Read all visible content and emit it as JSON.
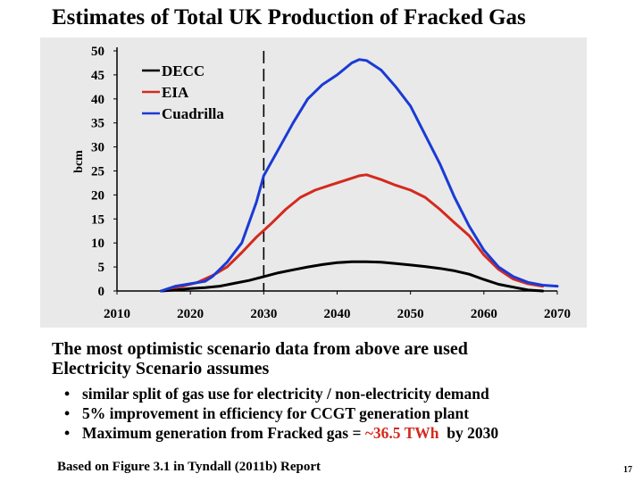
{
  "slide": {
    "title": "Estimates of Total UK Production of Fracked Gas",
    "body_line1": "The most optimistic scenario data from above are used",
    "body_line2": "Electricity Scenario assumes",
    "bullets": [
      {
        "text": "similar split of gas use for electricity / non-electricity demand"
      },
      {
        "text": "5% improvement in efficiency for CCGT generation plant"
      },
      {
        "text_before": "Maximum generation from Fracked gas = ",
        "highlight": "~36.5 TWh",
        "text_after": "  by 2030"
      }
    ],
    "source": "Based on Figure 3.1 in Tyndall (2011b) Report",
    "page_number": "17",
    "highlight_color": "#d42a1e"
  },
  "chart_data": {
    "type": "line",
    "title": "",
    "xlabel": "",
    "ylabel": "bcm",
    "xlim": [
      2010,
      2070
    ],
    "ylim": [
      0,
      50
    ],
    "x_ticks": [
      "2010",
      "2020",
      "2030",
      "2040",
      "2050",
      "2060",
      "2070"
    ],
    "y_ticks": [
      "0",
      "5",
      "10",
      "15",
      "20",
      "25",
      "30",
      "35",
      "40",
      "45",
      "50"
    ],
    "marker_line_x": 2030,
    "background_color": "#e9e9e9",
    "legend_position": "top-left",
    "series": [
      {
        "name": "DECC",
        "color": "#000000",
        "points": [
          [
            2016,
            0
          ],
          [
            2018,
            0.2
          ],
          [
            2020,
            0.5
          ],
          [
            2022,
            0.7
          ],
          [
            2024,
            1.0
          ],
          [
            2026,
            1.6
          ],
          [
            2028,
            2.2
          ],
          [
            2030,
            3.0
          ],
          [
            2032,
            3.8
          ],
          [
            2034,
            4.4
          ],
          [
            2036,
            5.0
          ],
          [
            2038,
            5.5
          ],
          [
            2040,
            5.9
          ],
          [
            2042,
            6.1
          ],
          [
            2044,
            6.1
          ],
          [
            2046,
            6.0
          ],
          [
            2048,
            5.7
          ],
          [
            2050,
            5.4
          ],
          [
            2052,
            5.1
          ],
          [
            2054,
            4.7
          ],
          [
            2056,
            4.2
          ],
          [
            2058,
            3.5
          ],
          [
            2060,
            2.4
          ],
          [
            2062,
            1.4
          ],
          [
            2064,
            0.8
          ],
          [
            2066,
            0.2
          ],
          [
            2068,
            0
          ]
        ]
      },
      {
        "name": "EIA",
        "color": "#d42a1e",
        "points": [
          [
            2017,
            0.5
          ],
          [
            2019,
            1.0
          ],
          [
            2021,
            1.8
          ],
          [
            2023,
            3.2
          ],
          [
            2025,
            5.0
          ],
          [
            2027,
            8.0
          ],
          [
            2029,
            11.2
          ],
          [
            2031,
            14.0
          ],
          [
            2033,
            17.0
          ],
          [
            2035,
            19.5
          ],
          [
            2037,
            21.0
          ],
          [
            2039,
            22.0
          ],
          [
            2041,
            23.0
          ],
          [
            2043,
            24.0
          ],
          [
            2044,
            24.2
          ],
          [
            2046,
            23.2
          ],
          [
            2048,
            22.0
          ],
          [
            2050,
            21.0
          ],
          [
            2052,
            19.5
          ],
          [
            2054,
            17.0
          ],
          [
            2056,
            14.2
          ],
          [
            2058,
            11.5
          ],
          [
            2060,
            7.5
          ],
          [
            2062,
            4.5
          ],
          [
            2064,
            2.5
          ],
          [
            2066,
            1.5
          ],
          [
            2068,
            1.0
          ]
        ]
      },
      {
        "name": "Cuadrilla",
        "color": "#1a3ad6",
        "points": [
          [
            2016,
            0
          ],
          [
            2018,
            1.0
          ],
          [
            2020,
            1.5
          ],
          [
            2022,
            2.0
          ],
          [
            2023,
            3.0
          ],
          [
            2025,
            6.0
          ],
          [
            2027,
            10.0
          ],
          [
            2029,
            18.5
          ],
          [
            2030,
            24.0
          ],
          [
            2032,
            29.5
          ],
          [
            2034,
            35.0
          ],
          [
            2036,
            40.0
          ],
          [
            2038,
            43.0
          ],
          [
            2040,
            45.0
          ],
          [
            2042,
            47.5
          ],
          [
            2043,
            48.2
          ],
          [
            2044,
            48.0
          ],
          [
            2046,
            46.0
          ],
          [
            2048,
            42.5
          ],
          [
            2050,
            38.5
          ],
          [
            2052,
            32.5
          ],
          [
            2054,
            26.5
          ],
          [
            2056,
            19.5
          ],
          [
            2058,
            13.5
          ],
          [
            2060,
            8.5
          ],
          [
            2062,
            5.0
          ],
          [
            2064,
            3.0
          ],
          [
            2066,
            1.8
          ],
          [
            2068,
            1.2
          ],
          [
            2070,
            1.0
          ]
        ]
      }
    ]
  }
}
